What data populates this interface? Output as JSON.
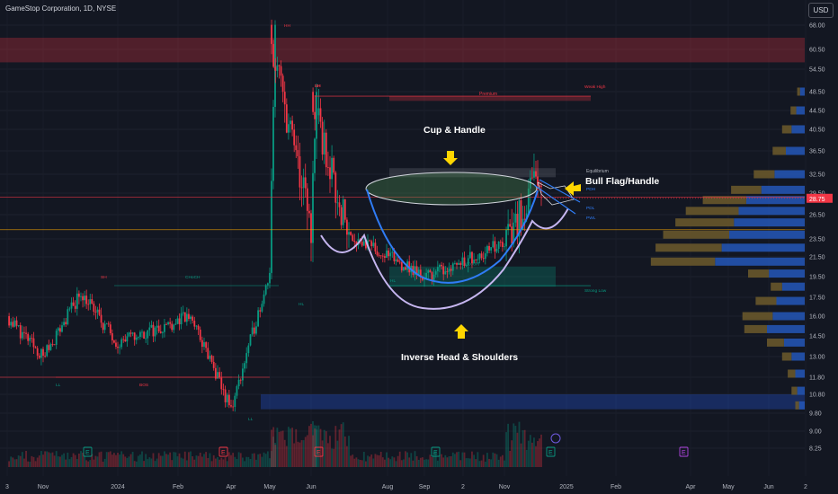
{
  "header": {
    "symbol_title": "GameStop Corporation, 1D, NYSE",
    "currency": "USD"
  },
  "chart_data": {
    "type": "candlestick",
    "price_axis": {
      "ticks": [
        68.0,
        60.5,
        54.5,
        48.5,
        44.5,
        40.5,
        36.5,
        32.5,
        29.5,
        26.5,
        23.5,
        21.5,
        19.5,
        17.5,
        16.0,
        14.5,
        13.0,
        11.8,
        10.8,
        9.8,
        9.0,
        8.25
      ],
      "tick_labels": [
        "68.00",
        "60.50",
        "54.50",
        "48.50",
        "44.50",
        "40.50",
        "36.50",
        "32.50",
        "29.50",
        "26.50",
        "23.50",
        "21.50",
        "19.50",
        "17.50",
        "16.00",
        "14.50",
        "13.00",
        "11.80",
        "10.80",
        "9.80",
        "9.00",
        "8.25"
      ],
      "scale": "log",
      "current_price": 28.75,
      "current_price_label": "28.75"
    },
    "time_axis": {
      "labels": [
        "3",
        "Nov",
        "2024",
        "Feb",
        "Apr",
        "May",
        "Jun",
        "Aug",
        "Sep",
        "2",
        "Nov",
        "2025",
        "Feb",
        "Apr",
        "May",
        "Jun",
        "2"
      ]
    },
    "candles_segments": [
      {
        "from": "Oct 2023",
        "to": "Nov 2023",
        "start": 16.0,
        "end": 13.0
      },
      {
        "from": "Nov 2023",
        "to": "Dec 2023",
        "start": 13.0,
        "end": 18.0
      },
      {
        "from": "Dec 2023",
        "to": "Jan 2024",
        "start": 18.0,
        "end": 14.0
      },
      {
        "from": "Jan 2024",
        "to": "Mar 2024",
        "start": 14.0,
        "end": 16.0
      },
      {
        "from": "Mar 2024",
        "to": "Apr 2024",
        "start": 16.0,
        "end": 10.0
      },
      {
        "from": "Apr 2024",
        "to": "May 2024",
        "start": 10.0,
        "end": 20.0
      },
      {
        "from": "May 2024",
        "to": "May 2024",
        "start": 20.0,
        "end": 64.0
      },
      {
        "from": "May 2024",
        "to": "Jun 2024",
        "start": 64.0,
        "end": 25.0
      },
      {
        "from": "Jun 2024",
        "to": "Jun 2024",
        "start": 25.0,
        "end": 47.0
      },
      {
        "from": "Jun 2024",
        "to": "Jul 2024",
        "start": 47.0,
        "end": 24.0
      },
      {
        "from": "Jul 2024",
        "to": "Sep 2024",
        "start": 24.0,
        "end": 19.5
      },
      {
        "from": "Sep 2024",
        "to": "Nov 2024",
        "start": 19.5,
        "end": 23.0
      },
      {
        "from": "Nov 2024",
        "to": "Dec 2024",
        "start": 23.0,
        "end": 31.0
      },
      {
        "from": "Dec 2024",
        "to": "Dec 2024",
        "start": 31.0,
        "end": 28.75
      }
    ],
    "zones": [
      {
        "label": "",
        "from_price": 56.5,
        "to_price": 64.0,
        "color": "#f23645"
      },
      {
        "label": "Premium",
        "from_price": 46.5,
        "to_price": 47.5,
        "color": "#f23645"
      },
      {
        "label": "Equilibrium",
        "from_price": 32.0,
        "to_price": 33.5,
        "color": "#787b86"
      },
      {
        "label": "Discount",
        "from_price": 18.5,
        "to_price": 20.5,
        "color": "#089981"
      },
      {
        "label": "",
        "from_price": 10.0,
        "to_price": 10.8,
        "color": "#2962ff"
      }
    ],
    "horizontal_lines": [
      {
        "label": "",
        "price": 47.5,
        "color": "#f23645"
      },
      {
        "label": "",
        "price": 28.9,
        "color": "#f23645"
      },
      {
        "label": "",
        "price": 24.6,
        "color": "#f7a600"
      },
      {
        "label": "",
        "price": 18.6,
        "color": "#089981"
      },
      {
        "label": "",
        "price": 11.8,
        "color": "#f23645"
      }
    ],
    "pattern_annotations": [
      {
        "label": "Cup & Handle"
      },
      {
        "label": "Inverse Head & Shoulders"
      },
      {
        "label": "Bull Flag/Handle"
      }
    ],
    "structure_labels": [
      "HH",
      "LH",
      "LL",
      "LL",
      "HL",
      "HL",
      "BOS",
      "CHoCH",
      "SH",
      "SH",
      "PDH",
      "PDL",
      "PWL",
      "Weak High",
      "Strong Low"
    ],
    "event_markers": [
      "E",
      "E",
      "E",
      "E",
      "E",
      "E"
    ],
    "volume_profile": {
      "price_levels": [
        48.5,
        44.5,
        40.5,
        36.5,
        32.5,
        30.0,
        28.5,
        27.0,
        25.5,
        24.0,
        22.5,
        21.0,
        19.8,
        18.5,
        17.2,
        16.0,
        15.0,
        14.0,
        13.0,
        12.0,
        11.0,
        10.2
      ],
      "up_volume": [
        5,
        9,
        14,
        20,
        32,
        46,
        62,
        70,
        75,
        80,
        88,
        95,
        38,
        24,
        30,
        34,
        40,
        22,
        14,
        10,
        8,
        6
      ],
      "down_volume": [
        3,
        6,
        10,
        14,
        22,
        32,
        46,
        56,
        62,
        70,
        70,
        68,
        22,
        12,
        22,
        32,
        24,
        18,
        10,
        8,
        6,
        4
      ]
    }
  },
  "colors": {
    "background": "#131722",
    "up": "#089981",
    "down": "#f23645",
    "annotation_arrow": "#ffd600",
    "cup_ellipse": "#4a8a4f",
    "cup_line": "#2f7cf6",
    "ihs_line": "#c6b6f0",
    "volume_profile_up": "#2457b8",
    "volume_profile_down": "#6d5a2b"
  }
}
